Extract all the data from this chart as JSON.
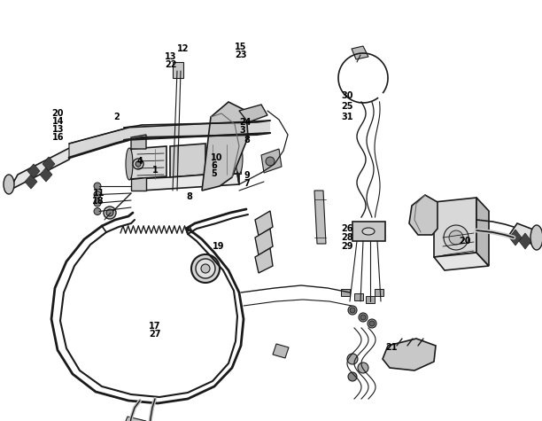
{
  "bg_color": "#ffffff",
  "line_color": "#1a1a1a",
  "label_color": "#000000",
  "fig_width": 6.12,
  "fig_height": 4.75,
  "dpi": 100,
  "labels": [
    [
      "12",
      1.98,
      4.3,
      "left"
    ],
    [
      "13",
      1.85,
      4.22,
      "left"
    ],
    [
      "22",
      1.85,
      4.14,
      "left"
    ],
    [
      "15",
      2.58,
      4.28,
      "left"
    ],
    [
      "23",
      2.58,
      4.2,
      "left"
    ],
    [
      "24",
      2.68,
      3.62,
      "left"
    ],
    [
      "3",
      2.68,
      3.54,
      "left"
    ],
    [
      "2",
      1.28,
      3.6,
      "left"
    ],
    [
      "4",
      1.55,
      3.22,
      "left"
    ],
    [
      "1",
      1.72,
      3.1,
      "left"
    ],
    [
      "10",
      2.38,
      3.18,
      "left"
    ],
    [
      "6",
      2.38,
      3.1,
      "left"
    ],
    [
      "5",
      2.38,
      3.02,
      "left"
    ],
    [
      "8",
      2.72,
      3.32,
      "left"
    ],
    [
      "9",
      2.72,
      2.92,
      "left"
    ],
    [
      "7",
      2.72,
      2.84,
      "left"
    ],
    [
      "8",
      2.1,
      2.72,
      "left"
    ],
    [
      "11",
      1.18,
      2.98,
      "right"
    ],
    [
      "18",
      1.18,
      2.9,
      "right"
    ],
    [
      "20",
      0.72,
      3.58,
      "right"
    ],
    [
      "14",
      0.72,
      3.5,
      "right"
    ],
    [
      "13",
      0.72,
      3.42,
      "right"
    ],
    [
      "16",
      0.72,
      3.34,
      "right"
    ],
    [
      "19",
      2.32,
      2.28,
      "left"
    ],
    [
      "17",
      1.65,
      1.32,
      "left"
    ],
    [
      "27",
      1.65,
      1.24,
      "left"
    ],
    [
      "30",
      3.82,
      3.52,
      "left"
    ],
    [
      "25",
      3.82,
      3.4,
      "left"
    ],
    [
      "31",
      3.82,
      3.28,
      "left"
    ],
    [
      "26",
      3.82,
      2.7,
      "left"
    ],
    [
      "28",
      3.82,
      2.62,
      "left"
    ],
    [
      "29",
      3.82,
      2.54,
      "left"
    ],
    [
      "20",
      5.12,
      2.28,
      "left"
    ],
    [
      "21",
      4.18,
      0.95,
      "left"
    ]
  ]
}
